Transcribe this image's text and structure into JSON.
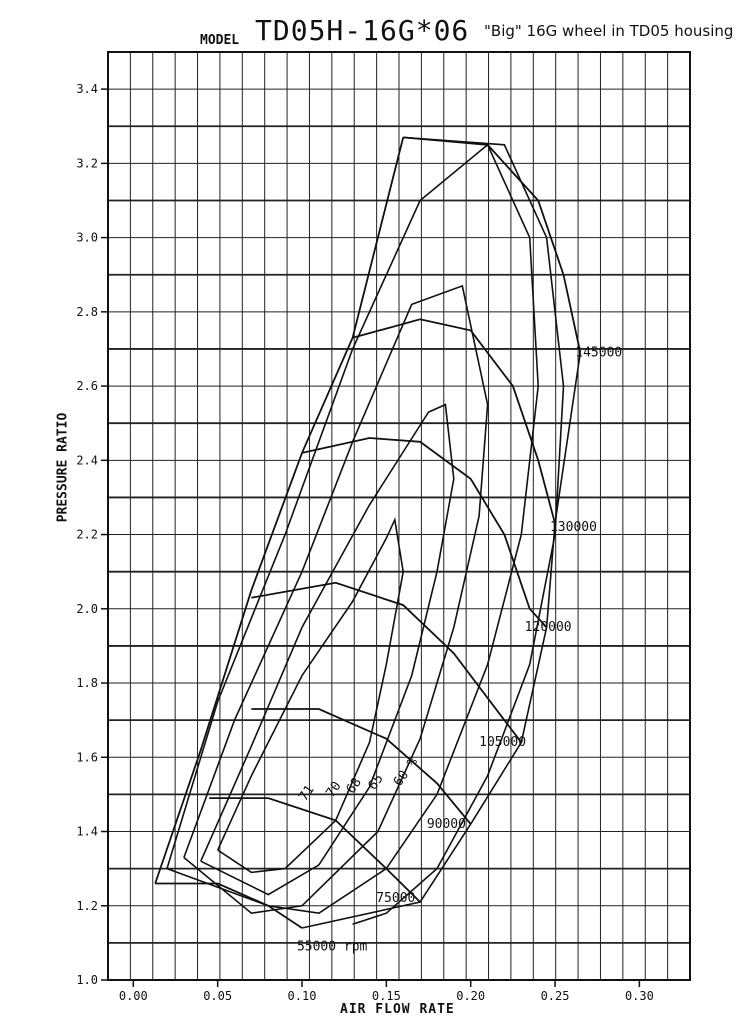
{
  "header": {
    "model_label": "MODEL",
    "model_name": "TD05H-16G*06",
    "note": "\"Big\" 16G wheel in TD05 housing"
  },
  "chart_data": {
    "type": "line",
    "title": "TD05H-16G*06",
    "xlabel": "AIR FLOW RATE",
    "ylabel": "PRESSURE RATIO",
    "xlim": [
      -0.015,
      0.33
    ],
    "ylim": [
      1.0,
      3.5
    ],
    "x_ticks": [
      "0.00",
      "0.05",
      "0.10",
      "0.15",
      "0.20",
      "0.25",
      "0.30"
    ],
    "y_ticks": [
      "1.0",
      "1.2",
      "1.4",
      "1.6",
      "1.8",
      "2.0",
      "2.2",
      "2.4",
      "2.6",
      "2.8",
      "3.0",
      "3.2",
      "3.4"
    ],
    "grid": true,
    "series": [
      {
        "name": "55000 rpm",
        "points": [
          [
            0.013,
            1.26
          ],
          [
            0.05,
            1.26
          ],
          [
            0.08,
            1.2
          ],
          [
            0.1,
            1.14
          ]
        ]
      },
      {
        "name": "75000",
        "points": [
          [
            0.045,
            1.49
          ],
          [
            0.08,
            1.49
          ],
          [
            0.12,
            1.43
          ],
          [
            0.15,
            1.3
          ],
          [
            0.17,
            1.21
          ]
        ]
      },
      {
        "name": "90000",
        "points": [
          [
            0.07,
            1.73
          ],
          [
            0.11,
            1.73
          ],
          [
            0.15,
            1.65
          ],
          [
            0.18,
            1.53
          ],
          [
            0.2,
            1.42
          ]
        ]
      },
      {
        "name": "105000",
        "points": [
          [
            0.07,
            2.03
          ],
          [
            0.12,
            2.07
          ],
          [
            0.16,
            2.01
          ],
          [
            0.19,
            1.88
          ],
          [
            0.22,
            1.7
          ],
          [
            0.23,
            1.64
          ]
        ]
      },
      {
        "name": "120000",
        "points": [
          [
            0.1,
            2.42
          ],
          [
            0.14,
            2.46
          ],
          [
            0.17,
            2.45
          ],
          [
            0.2,
            2.35
          ],
          [
            0.22,
            2.2
          ],
          [
            0.235,
            2.0
          ],
          [
            0.245,
            1.95
          ]
        ]
      },
      {
        "name": "130000",
        "points": [
          [
            0.13,
            2.73
          ],
          [
            0.17,
            2.78
          ],
          [
            0.2,
            2.75
          ],
          [
            0.225,
            2.6
          ],
          [
            0.24,
            2.4
          ],
          [
            0.25,
            2.23
          ]
        ]
      },
      {
        "name": "145000",
        "points": [
          [
            0.16,
            3.27
          ],
          [
            0.21,
            3.25
          ],
          [
            0.24,
            3.1
          ],
          [
            0.255,
            2.9
          ],
          [
            0.265,
            2.69
          ]
        ]
      },
      {
        "name": "surge",
        "points": [
          [
            0.013,
            1.26
          ],
          [
            0.04,
            1.62
          ],
          [
            0.07,
            2.05
          ],
          [
            0.1,
            2.42
          ],
          [
            0.13,
            2.73
          ],
          [
            0.16,
            3.27
          ]
        ]
      }
    ],
    "efficiency_islands": [
      {
        "label": "71",
        "points": [
          [
            0.05,
            1.35
          ],
          [
            0.07,
            1.55
          ],
          [
            0.1,
            1.82
          ],
          [
            0.13,
            2.02
          ],
          [
            0.15,
            2.19
          ],
          [
            0.155,
            2.24
          ],
          [
            0.16,
            2.1
          ],
          [
            0.15,
            1.85
          ],
          [
            0.14,
            1.64
          ],
          [
            0.12,
            1.43
          ],
          [
            0.09,
            1.3
          ],
          [
            0.07,
            1.29
          ],
          [
            0.05,
            1.35
          ]
        ]
      },
      {
        "label": "70",
        "points": [
          [
            0.04,
            1.32
          ],
          [
            0.07,
            1.63
          ],
          [
            0.1,
            1.95
          ],
          [
            0.14,
            2.28
          ],
          [
            0.175,
            2.53
          ],
          [
            0.185,
            2.55
          ],
          [
            0.19,
            2.35
          ],
          [
            0.18,
            2.1
          ],
          [
            0.165,
            1.82
          ],
          [
            0.14,
            1.52
          ],
          [
            0.11,
            1.31
          ],
          [
            0.08,
            1.23
          ],
          [
            0.04,
            1.32
          ]
        ]
      },
      {
        "label": "68",
        "points": [
          [
            0.03,
            1.33
          ],
          [
            0.06,
            1.7
          ],
          [
            0.1,
            2.1
          ],
          [
            0.13,
            2.45
          ],
          [
            0.165,
            2.82
          ],
          [
            0.195,
            2.87
          ],
          [
            0.21,
            2.55
          ],
          [
            0.205,
            2.25
          ],
          [
            0.19,
            1.95
          ],
          [
            0.17,
            1.65
          ],
          [
            0.145,
            1.4
          ],
          [
            0.1,
            1.2
          ],
          [
            0.07,
            1.18
          ],
          [
            0.03,
            1.33
          ]
        ]
      },
      {
        "label": "65",
        "points": [
          [
            0.02,
            1.3
          ],
          [
            0.05,
            1.75
          ],
          [
            0.09,
            2.2
          ],
          [
            0.13,
            2.7
          ],
          [
            0.17,
            3.1
          ],
          [
            0.21,
            3.25
          ],
          [
            0.235,
            3.0
          ],
          [
            0.24,
            2.6
          ],
          [
            0.23,
            2.2
          ],
          [
            0.21,
            1.85
          ],
          [
            0.18,
            1.5
          ],
          [
            0.15,
            1.3
          ],
          [
            0.11,
            1.18
          ],
          [
            0.08,
            1.2
          ],
          [
            0.02,
            1.3
          ]
        ]
      },
      {
        "label": "60 %",
        "points": [
          [
            0.16,
            3.27
          ],
          [
            0.22,
            3.25
          ],
          [
            0.245,
            3.0
          ],
          [
            0.255,
            2.6
          ],
          [
            0.25,
            2.2
          ],
          [
            0.235,
            1.85
          ],
          [
            0.21,
            1.55
          ],
          [
            0.18,
            1.3
          ],
          [
            0.15,
            1.18
          ],
          [
            0.13,
            1.15
          ]
        ]
      }
    ],
    "annotations": [
      {
        "text": "145000",
        "x": 0.262,
        "y": 2.68
      },
      {
        "text": "130000",
        "x": 0.247,
        "y": 2.21
      },
      {
        "text": "120000",
        "x": 0.232,
        "y": 1.94
      },
      {
        "text": "105000",
        "x": 0.205,
        "y": 1.63
      },
      {
        "text": "90000",
        "x": 0.174,
        "y": 1.41
      },
      {
        "text": "75000",
        "x": 0.144,
        "y": 1.21
      },
      {
        "text": "55000 rpm",
        "x": 0.097,
        "y": 1.08
      }
    ]
  }
}
